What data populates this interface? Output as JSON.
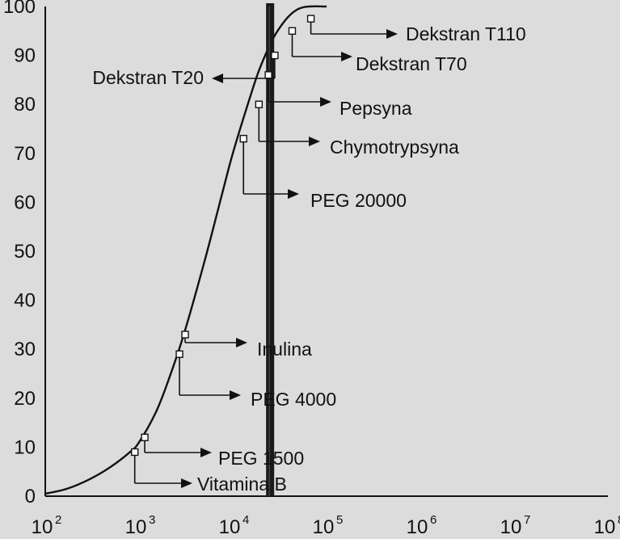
{
  "chart_data": {
    "type": "scatter",
    "title": "",
    "xlabel": "",
    "ylabel": "",
    "x_scale": "log",
    "xlim": [
      100,
      100000000
    ],
    "ylim": [
      0,
      100
    ],
    "grid": false,
    "legend": "none",
    "x_ticks": [
      {
        "base": "10",
        "exp": "2",
        "value": 100
      },
      {
        "base": "10",
        "exp": "3",
        "value": 1000
      },
      {
        "base": "10",
        "exp": "4",
        "value": 10000
      },
      {
        "base": "10",
        "exp": "5",
        "value": 100000
      },
      {
        "base": "10",
        "exp": "6",
        "value": 1000000
      },
      {
        "base": "10",
        "exp": "7",
        "value": 10000000
      },
      {
        "base": "10",
        "exp": "8",
        "value": 100000000
      }
    ],
    "y_ticks": [
      "0",
      "10",
      "20",
      "30",
      "40",
      "50",
      "60",
      "70",
      "80",
      "90",
      "100"
    ],
    "curve": {
      "x": [
        100,
        170,
        300,
        500,
        800,
        1000,
        1500,
        2000,
        3000,
        5000,
        8000,
        10000,
        15000,
        20000,
        30000,
        50000,
        100000
      ],
      "y": [
        0.5,
        1.5,
        3.5,
        6,
        9,
        11,
        17,
        23,
        33,
        48,
        63,
        70,
        81,
        88,
        95,
        99.5,
        100
      ]
    },
    "cutoff_line": {
      "x": 25000,
      "color": "#1a1a1a"
    },
    "points": [
      {
        "label": "Vitamina B",
        "x": 900,
        "y": 9
      },
      {
        "label": "PEG 1500",
        "x": 1150,
        "y": 12
      },
      {
        "label": "PEG 4000",
        "x": 2700,
        "y": 29
      },
      {
        "label": "Inulina",
        "x": 3100,
        "y": 33
      },
      {
        "label": "PEG 20000",
        "x": 13000,
        "y": 73
      },
      {
        "label": "Chymotrypsyna",
        "x": 19000,
        "y": 80
      },
      {
        "label": "Pepsyna",
        "x": 24000,
        "y": 86
      },
      {
        "label": "Dekstran T20",
        "x": 28000,
        "y": 90
      },
      {
        "label": "Dekstran T70",
        "x": 43000,
        "y": 95
      },
      {
        "label": "Dekstran T110",
        "x": 68000,
        "y": 97.5
      }
    ],
    "colors": {
      "background": "#dcdcdc",
      "ink": "#111111",
      "marker_fill": "#ffffff"
    }
  }
}
